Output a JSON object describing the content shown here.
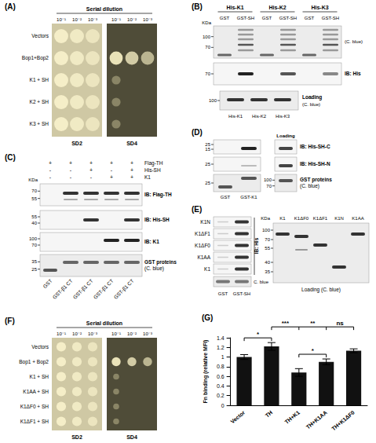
{
  "panels": {
    "A": {
      "letter": "(A)",
      "header": "Serial dilution",
      "dilutions": [
        "10⁻¹",
        "10⁻²",
        "10⁻³"
      ],
      "media": [
        "SD2",
        "SD4"
      ],
      "rows": [
        "Vectors",
        "Bop1+Bop2",
        "K1 + SH",
        "K2 + SH",
        "K3 + SH"
      ]
    },
    "B": {
      "letter": "(B)",
      "kda": "KDa",
      "groups": [
        "His-K1",
        "His-K2",
        "His-K3"
      ],
      "lanes": [
        "GST",
        "GST-SH",
        "GST",
        "GST-SH",
        "GST",
        "GST-SH"
      ],
      "blots": [
        {
          "label": "(C. blue)",
          "markers": [
            100,
            70
          ]
        },
        {
          "label": "IB: His",
          "markers": [
            70
          ]
        }
      ],
      "loading": {
        "label": "Loading",
        "sublabel": "(C. blue)",
        "markers": [
          100
        ],
        "lanes": [
          "His-K1",
          "His-K2",
          "His-K3"
        ]
      }
    },
    "C": {
      "letter": "(C)",
      "kda": "KDa",
      "conditions": [
        {
          "name": "Flag-TH",
          "signs": [
            "+",
            "+",
            "+",
            "+",
            "+"
          ]
        },
        {
          "name": "His-SH",
          "signs": [
            "-",
            "-",
            "+",
            "-",
            "+"
          ]
        },
        {
          "name": "K1",
          "signs": [
            "-",
            "-",
            "-",
            "+",
            "+"
          ]
        }
      ],
      "blots": [
        {
          "label": "IB: Flag-TH",
          "markers": [
            70,
            55
          ]
        },
        {
          "label": "IB: His-SH",
          "markers": [
            55,
            40
          ]
        },
        {
          "label": "IB: K1",
          "markers": [
            100,
            70
          ]
        },
        {
          "label": "GST proteins (C. blue)",
          "markers": [
            35,
            25
          ]
        }
      ],
      "lanes": [
        "GST",
        "GST-β1 CT",
        "GST-β1 CT",
        "GST-β1 CT",
        "GST-β1 CT"
      ]
    },
    "D": {
      "letter": "(D)",
      "loading": "Loading",
      "blots": [
        {
          "label": "IB: His-SH-C",
          "markers": [
            25,
            15
          ]
        },
        {
          "label": "IB: His-SH-N",
          "markers": [
            25
          ]
        },
        {
          "label": "GST proteins (C. blue)",
          "markers": [
            25
          ],
          "loading_markers": [
            100,
            70
          ]
        }
      ],
      "lanes": [
        "GST",
        "GST-K1"
      ]
    },
    "E": {
      "letter": "(E)",
      "rows": [
        "K1N",
        "K1ΔF1",
        "K1ΔF0",
        "K1AA",
        "K1"
      ],
      "stain": "C. blue",
      "blot": "IB: His",
      "lanes": [
        "GST",
        "GST-SH"
      ],
      "loading": {
        "kda": "KDa",
        "lanes": [
          "K1",
          "K1ΔF0",
          "K1ΔF1",
          "K1N",
          "K1AA"
        ],
        "markers": [
          100,
          70,
          55,
          40,
          35
        ],
        "label": "Loading (C. blue)"
      }
    },
    "F": {
      "letter": "(F)",
      "header": "Serial dilution",
      "dilutions": [
        "10⁻¹",
        "10⁻²",
        "10⁻³"
      ],
      "media": [
        "SD2",
        "SD4"
      ],
      "rows": [
        "Vectors",
        "Bop1 + Bop2",
        "K1 + SH",
        "K1AA + SH",
        "K1ΔF0 + SH",
        "K1ΔF1 + SH"
      ]
    }
  },
  "chart_data": {
    "type": "bar",
    "title": "(G)",
    "y_label": "Fn binding (relative MFI)",
    "categories": [
      "Vector",
      "TH",
      "TH+K1",
      "TH+K1AA",
      "TH+K1ΔF0"
    ],
    "values": [
      1,
      1.22,
      0.68,
      0.9,
      1.13
    ],
    "errors": [
      0.05,
      0.08,
      0.08,
      0.06,
      0.04
    ],
    "color": "#111111",
    "ylim": [
      0,
      1.4
    ],
    "yticks": [
      0,
      0.2,
      0.4,
      0.6,
      0.8,
      1,
      1.2,
      1.4
    ],
    "grid": false,
    "annotations": [
      {
        "from": "Vector",
        "to": "TH",
        "label": "*"
      },
      {
        "from": "TH",
        "to": "TH+K1",
        "label": "***"
      },
      {
        "from": "TH",
        "to": "TH+K1AA",
        "label": "**"
      },
      {
        "from": "TH",
        "to": "TH+K1ΔF0",
        "label": "ns"
      },
      {
        "from": "TH+K1",
        "to": "TH+K1AA",
        "label": "*"
      }
    ]
  }
}
